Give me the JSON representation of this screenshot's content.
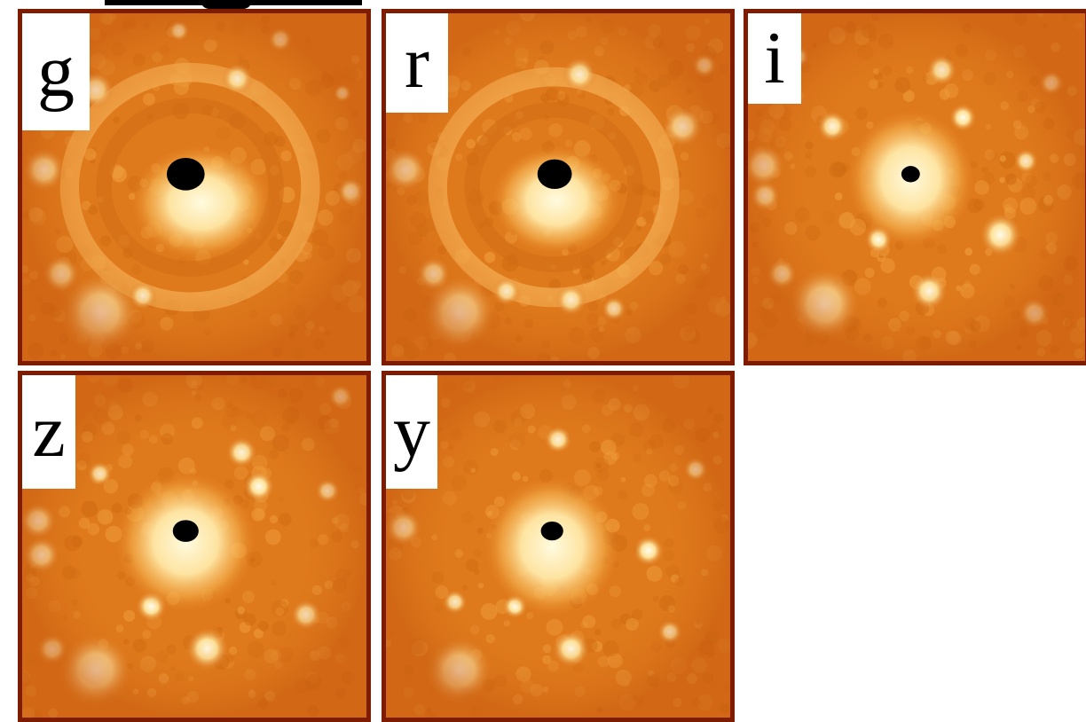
{
  "colors": {
    "background": "#ffffff",
    "border": "#7d1c00",
    "sky": "#df7a1c",
    "glow": "#fffbe0",
    "core": "#000000"
  },
  "panels": [
    {
      "band": "g",
      "ring": true,
      "halo_strength": "medium",
      "halo_offset": "below"
    },
    {
      "band": "r",
      "ring": true,
      "halo_strength": "medium",
      "halo_offset": "below"
    },
    {
      "band": "i",
      "ring": false,
      "halo_strength": "strong",
      "halo_offset": "centered"
    },
    {
      "band": "z",
      "ring": false,
      "halo_strength": "strong",
      "halo_offset": "centered"
    },
    {
      "band": "y",
      "ring": false,
      "halo_strength": "strong",
      "halo_offset": "centered"
    }
  ]
}
